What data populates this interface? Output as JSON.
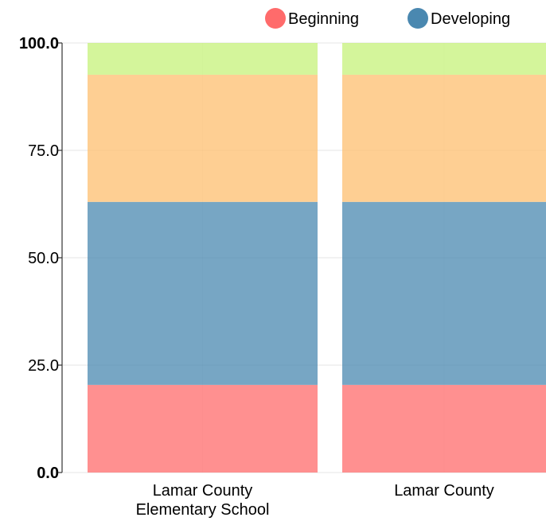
{
  "chart_data": {
    "type": "bar",
    "stacked": true,
    "categories": [
      [
        "Lamar County",
        "Elementary School"
      ],
      [
        "Lamar County"
      ]
    ],
    "series": [
      {
        "name": "Beginning",
        "color": "#ff6b6b",
        "values": [
          20.4,
          20.4
        ]
      },
      {
        "name": "Developing",
        "color": "#4a88b0",
        "values": [
          42.6,
          42.6
        ]
      },
      {
        "color": "#fdbf6f",
        "values": [
          29.6,
          29.6
        ]
      },
      {
        "color": "#c6f27a",
        "values": [
          7.4,
          7.4
        ]
      }
    ],
    "ylim": [
      0,
      100
    ],
    "yticks": [
      "0.0",
      "25.0",
      "50.0",
      "75.0",
      "100.0"
    ],
    "ytick_values": [
      0,
      25,
      50,
      75,
      100
    ],
    "bold_ticks": [
      "0.0",
      "100.0"
    ],
    "legend_position": "top-right",
    "grid": true
  }
}
